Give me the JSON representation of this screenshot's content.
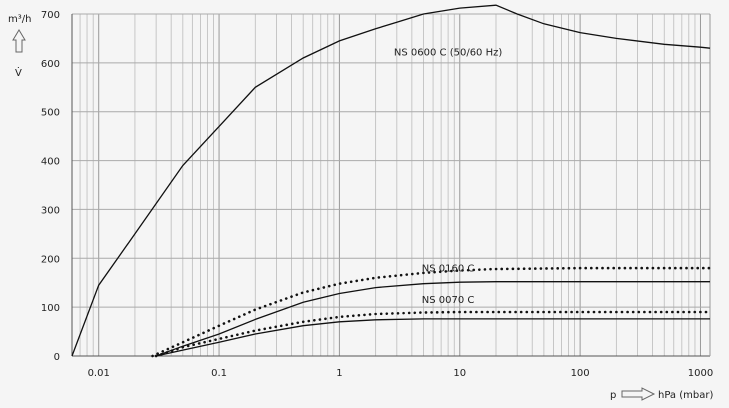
{
  "chart_data": {
    "type": "line",
    "title": "",
    "x_scale": "log",
    "xlim": [
      0.006,
      1200
    ],
    "ylim": [
      0,
      700
    ],
    "x_ticks": [
      {
        "value": 0.01,
        "label": "0.01"
      },
      {
        "value": 0.1,
        "label": "0.1"
      },
      {
        "value": 1,
        "label": "1"
      },
      {
        "value": 10,
        "label": "10"
      },
      {
        "value": 100,
        "label": "100"
      },
      {
        "value": 1000,
        "label": "1000"
      }
    ],
    "y_ticks": [
      {
        "value": 0,
        "label": "0"
      },
      {
        "value": 100,
        "label": "100"
      },
      {
        "value": 200,
        "label": "200"
      },
      {
        "value": 300,
        "label": "300"
      },
      {
        "value": 400,
        "label": "400"
      },
      {
        "value": 500,
        "label": "500"
      },
      {
        "value": 600,
        "label": "600"
      },
      {
        "value": 700,
        "label": "700"
      }
    ],
    "ylabel_unit": "m³/h",
    "ylabel_symbol": "V̇",
    "xlabel_symbol": "p",
    "xlabel_unit": "hPa (mbar)",
    "grid": true,
    "series": [
      {
        "name": "NS 0600 C (50/60 Hz)",
        "style": "solid",
        "label_at": {
          "x": 8,
          "y": 615
        },
        "points": [
          [
            0.006,
            0
          ],
          [
            0.01,
            145
          ],
          [
            0.02,
            250
          ],
          [
            0.05,
            390
          ],
          [
            0.1,
            470
          ],
          [
            0.2,
            550
          ],
          [
            0.5,
            610
          ],
          [
            1,
            645
          ],
          [
            2,
            670
          ],
          [
            3,
            683
          ],
          [
            5,
            700
          ],
          [
            10,
            712
          ],
          [
            20,
            718
          ],
          [
            30,
            700
          ],
          [
            50,
            680
          ],
          [
            100,
            662
          ],
          [
            200,
            650
          ],
          [
            500,
            638
          ],
          [
            1000,
            632
          ],
          [
            1200,
            630
          ]
        ]
      },
      {
        "name": "NS 0160 C",
        "style": "dotted",
        "label_at": {
          "x": 8,
          "y": 173
        },
        "points": [
          [
            0.028,
            0
          ],
          [
            0.05,
            28
          ],
          [
            0.1,
            62
          ],
          [
            0.2,
            95
          ],
          [
            0.5,
            130
          ],
          [
            1,
            148
          ],
          [
            2,
            160
          ],
          [
            5,
            170
          ],
          [
            10,
            175
          ],
          [
            20,
            178
          ],
          [
            50,
            179
          ],
          [
            100,
            180
          ],
          [
            1000,
            180
          ],
          [
            1200,
            180
          ]
        ]
      },
      {
        "name": "NS 0070 C",
        "style": "dotted",
        "label_at": {
          "x": 8,
          "y": 108
        },
        "points": [
          [
            0.03,
            0
          ],
          [
            0.05,
            18
          ],
          [
            0.1,
            35
          ],
          [
            0.2,
            52
          ],
          [
            0.5,
            70
          ],
          [
            1,
            80
          ],
          [
            2,
            86
          ],
          [
            5,
            89
          ],
          [
            10,
            90
          ],
          [
            1000,
            90
          ],
          [
            1200,
            90
          ]
        ]
      },
      {
        "name": "",
        "style": "solid",
        "points": [
          [
            0.03,
            0
          ],
          [
            0.05,
            20
          ],
          [
            0.1,
            45
          ],
          [
            0.2,
            75
          ],
          [
            0.5,
            110
          ],
          [
            1,
            128
          ],
          [
            2,
            140
          ],
          [
            5,
            148
          ],
          [
            10,
            151
          ],
          [
            20,
            152
          ],
          [
            100,
            152
          ],
          [
            1000,
            152
          ],
          [
            1200,
            152
          ]
        ]
      },
      {
        "name": "",
        "style": "solid",
        "points": [
          [
            0.03,
            0
          ],
          [
            0.05,
            12
          ],
          [
            0.1,
            28
          ],
          [
            0.2,
            45
          ],
          [
            0.5,
            62
          ],
          [
            1,
            70
          ],
          [
            2,
            74
          ],
          [
            5,
            76
          ],
          [
            10,
            76
          ],
          [
            1000,
            76
          ],
          [
            1200,
            76
          ]
        ]
      }
    ]
  }
}
